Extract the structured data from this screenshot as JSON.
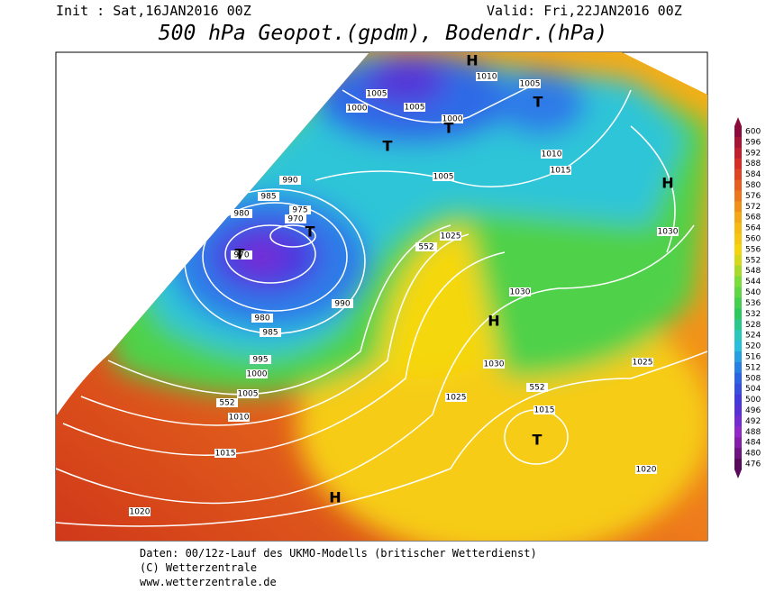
{
  "header": {
    "init": "Init : Sat,16JAN2016 00Z",
    "valid": "Valid: Fri,22JAN2016 00Z",
    "title": "500 hPa Geopot.(gpdm), Bodendr.(hPa)"
  },
  "footer": [
    "Daten: 00/12z-Lauf des UKMO-Modells (britischer Wetterdienst)",
    "(C) Wetterzentrale",
    "www.wetterzentrale.de"
  ],
  "colorbar": {
    "ticks": [
      600,
      596,
      592,
      588,
      584,
      580,
      576,
      572,
      568,
      564,
      560,
      556,
      552,
      548,
      544,
      540,
      536,
      532,
      528,
      524,
      520,
      516,
      512,
      508,
      504,
      500,
      496,
      492,
      488,
      484,
      480,
      476
    ]
  },
  "isobar_labels": [
    990,
    985,
    980,
    975,
    970,
    970,
    990,
    980,
    985,
    995,
    1000,
    1005,
    1010,
    1015,
    1020,
    1005,
    1000,
    1005,
    1000,
    1010,
    1005,
    1005,
    1010,
    1015,
    1025,
    1030,
    1030,
    1030,
    1025,
    1015,
    1025,
    1020,
    552,
    552,
    552
  ],
  "pressure_centers": [
    "H",
    "T",
    "T",
    "T",
    "T",
    "T",
    "H",
    "H",
    "T",
    "H"
  ]
}
